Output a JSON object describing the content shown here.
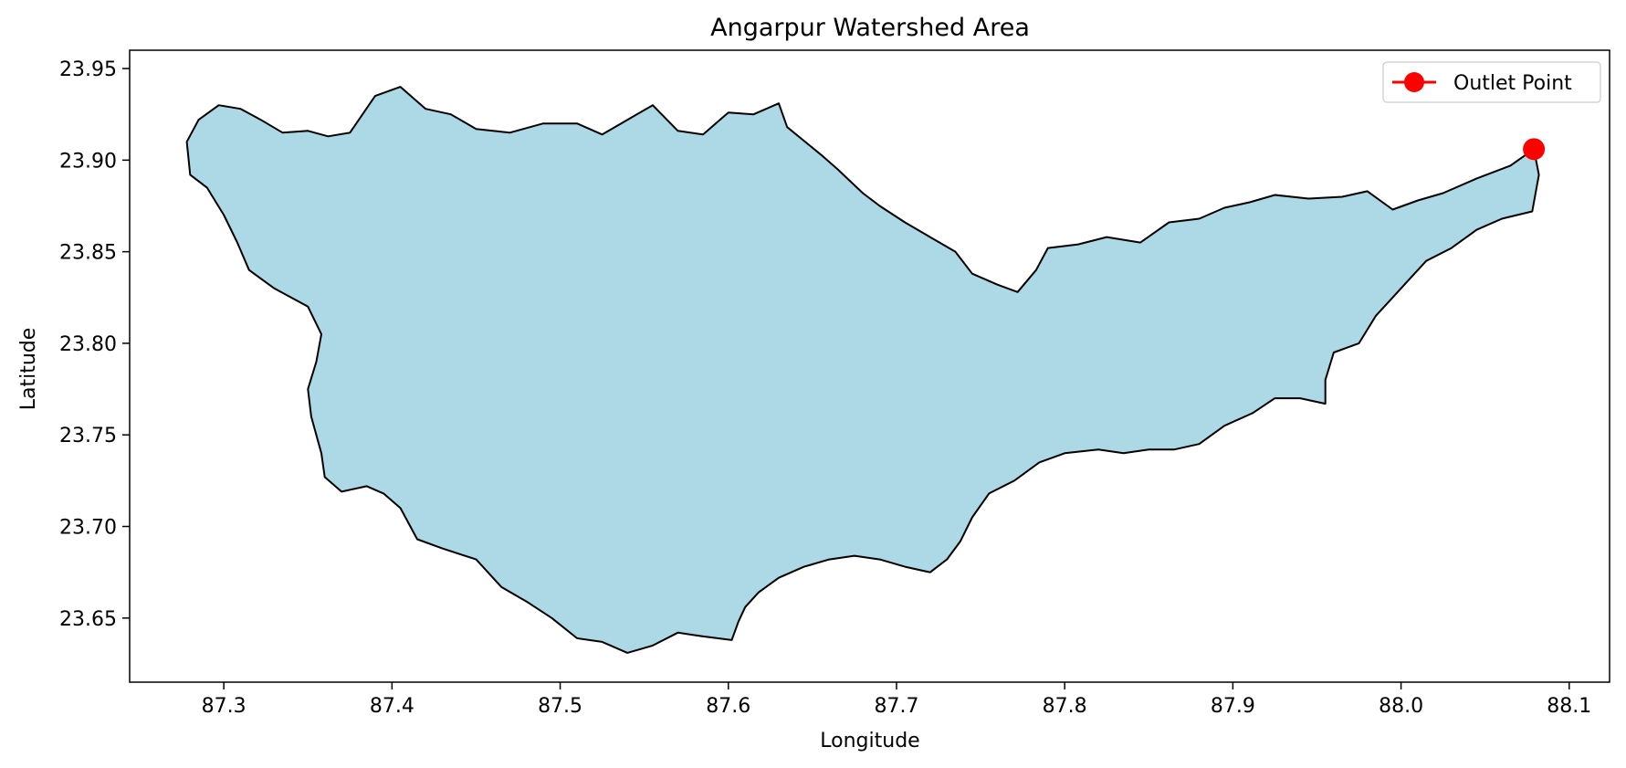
{
  "chart_data": {
    "type": "area",
    "title": "Angarpur Watershed Area",
    "xlabel": "Longitude",
    "ylabel": "Latitude",
    "xlim": [
      87.244,
      88.124
    ],
    "ylim": [
      23.615,
      23.96
    ],
    "xticks": [
      87.3,
      87.4,
      87.5,
      87.6,
      87.7,
      87.8,
      87.9,
      88.0,
      88.1
    ],
    "xtick_labels": [
      "87.3",
      "87.4",
      "87.5",
      "87.6",
      "87.7",
      "87.8",
      "87.9",
      "88.0",
      "88.1"
    ],
    "yticks": [
      23.65,
      23.7,
      23.75,
      23.8,
      23.85,
      23.9,
      23.95
    ],
    "ytick_labels": [
      "23.65",
      "23.70",
      "23.75",
      "23.80",
      "23.85",
      "23.90",
      "23.95"
    ],
    "grid": false,
    "legend_position": "top-right",
    "colors": {
      "watershed_fill": "#add8e6",
      "watershed_edge": "#000000",
      "outlet": "#ff0000"
    },
    "series": [
      {
        "kind": "polygon",
        "boundary": [
          [
            87.285,
            23.922
          ],
          [
            87.297,
            23.93
          ],
          [
            87.31,
            23.928
          ],
          [
            87.322,
            23.922
          ],
          [
            87.335,
            23.915
          ],
          [
            87.35,
            23.916
          ],
          [
            87.362,
            23.913
          ],
          [
            87.375,
            23.915
          ],
          [
            87.39,
            23.935
          ],
          [
            87.405,
            23.94
          ],
          [
            87.42,
            23.928
          ],
          [
            87.435,
            23.925
          ],
          [
            87.45,
            23.917
          ],
          [
            87.47,
            23.915
          ],
          [
            87.49,
            23.92
          ],
          [
            87.51,
            23.92
          ],
          [
            87.525,
            23.914
          ],
          [
            87.54,
            23.922
          ],
          [
            87.555,
            23.93
          ],
          [
            87.57,
            23.916
          ],
          [
            87.585,
            23.914
          ],
          [
            87.6,
            23.926
          ],
          [
            87.615,
            23.925
          ],
          [
            87.63,
            23.931
          ],
          [
            87.635,
            23.918
          ],
          [
            87.655,
            23.903
          ],
          [
            87.665,
            23.895
          ],
          [
            87.68,
            23.882
          ],
          [
            87.69,
            23.875
          ],
          [
            87.705,
            23.866
          ],
          [
            87.72,
            23.858
          ],
          [
            87.735,
            23.85
          ],
          [
            87.745,
            23.838
          ],
          [
            87.76,
            23.832
          ],
          [
            87.772,
            23.828
          ],
          [
            87.783,
            23.84
          ],
          [
            87.79,
            23.852
          ],
          [
            87.808,
            23.854
          ],
          [
            87.825,
            23.858
          ],
          [
            87.845,
            23.855
          ],
          [
            87.862,
            23.866
          ],
          [
            87.88,
            23.868
          ],
          [
            87.895,
            23.874
          ],
          [
            87.91,
            23.877
          ],
          [
            87.925,
            23.881
          ],
          [
            87.945,
            23.879
          ],
          [
            87.965,
            23.88
          ],
          [
            87.98,
            23.883
          ],
          [
            87.995,
            23.873
          ],
          [
            88.01,
            23.878
          ],
          [
            88.025,
            23.882
          ],
          [
            88.045,
            23.89
          ],
          [
            88.065,
            23.897
          ],
          [
            88.079,
            23.906
          ],
          [
            88.082,
            23.892
          ],
          [
            88.078,
            23.872
          ],
          [
            88.06,
            23.868
          ],
          [
            88.045,
            23.862
          ],
          [
            88.03,
            23.852
          ],
          [
            88.015,
            23.845
          ],
          [
            88.005,
            23.835
          ],
          [
            87.995,
            23.825
          ],
          [
            87.985,
            23.815
          ],
          [
            87.975,
            23.8
          ],
          [
            87.96,
            23.795
          ],
          [
            87.955,
            23.78
          ],
          [
            87.955,
            23.767
          ],
          [
            87.94,
            23.77
          ],
          [
            87.925,
            23.77
          ],
          [
            87.912,
            23.762
          ],
          [
            87.895,
            23.755
          ],
          [
            87.88,
            23.745
          ],
          [
            87.865,
            23.742
          ],
          [
            87.85,
            23.742
          ],
          [
            87.835,
            23.74
          ],
          [
            87.82,
            23.742
          ],
          [
            87.8,
            23.74
          ],
          [
            87.785,
            23.735
          ],
          [
            87.77,
            23.725
          ],
          [
            87.755,
            23.718
          ],
          [
            87.745,
            23.705
          ],
          [
            87.738,
            23.692
          ],
          [
            87.73,
            23.682
          ],
          [
            87.72,
            23.675
          ],
          [
            87.705,
            23.678
          ],
          [
            87.69,
            23.682
          ],
          [
            87.675,
            23.684
          ],
          [
            87.66,
            23.682
          ],
          [
            87.645,
            23.678
          ],
          [
            87.63,
            23.672
          ],
          [
            87.618,
            23.664
          ],
          [
            87.61,
            23.656
          ],
          [
            87.606,
            23.648
          ],
          [
            87.602,
            23.638
          ],
          [
            87.585,
            23.64
          ],
          [
            87.57,
            23.642
          ],
          [
            87.555,
            23.635
          ],
          [
            87.54,
            23.631
          ],
          [
            87.525,
            23.637
          ],
          [
            87.51,
            23.639
          ],
          [
            87.495,
            23.65
          ],
          [
            87.48,
            23.659
          ],
          [
            87.465,
            23.667
          ],
          [
            87.45,
            23.682
          ],
          [
            87.43,
            23.688
          ],
          [
            87.415,
            23.693
          ],
          [
            87.405,
            23.71
          ],
          [
            87.395,
            23.718
          ],
          [
            87.385,
            23.722
          ],
          [
            87.37,
            23.719
          ],
          [
            87.36,
            23.727
          ],
          [
            87.358,
            23.74
          ],
          [
            87.352,
            23.76
          ],
          [
            87.35,
            23.775
          ],
          [
            87.355,
            23.79
          ],
          [
            87.358,
            23.805
          ],
          [
            87.35,
            23.82
          ],
          [
            87.33,
            23.83
          ],
          [
            87.315,
            23.84
          ],
          [
            87.308,
            23.855
          ],
          [
            87.3,
            23.87
          ],
          [
            87.29,
            23.885
          ],
          [
            87.28,
            23.892
          ],
          [
            87.278,
            23.91
          ]
        ]
      },
      {
        "name": "Outlet Point",
        "kind": "point",
        "x": 88.079,
        "y": 23.906
      }
    ]
  }
}
